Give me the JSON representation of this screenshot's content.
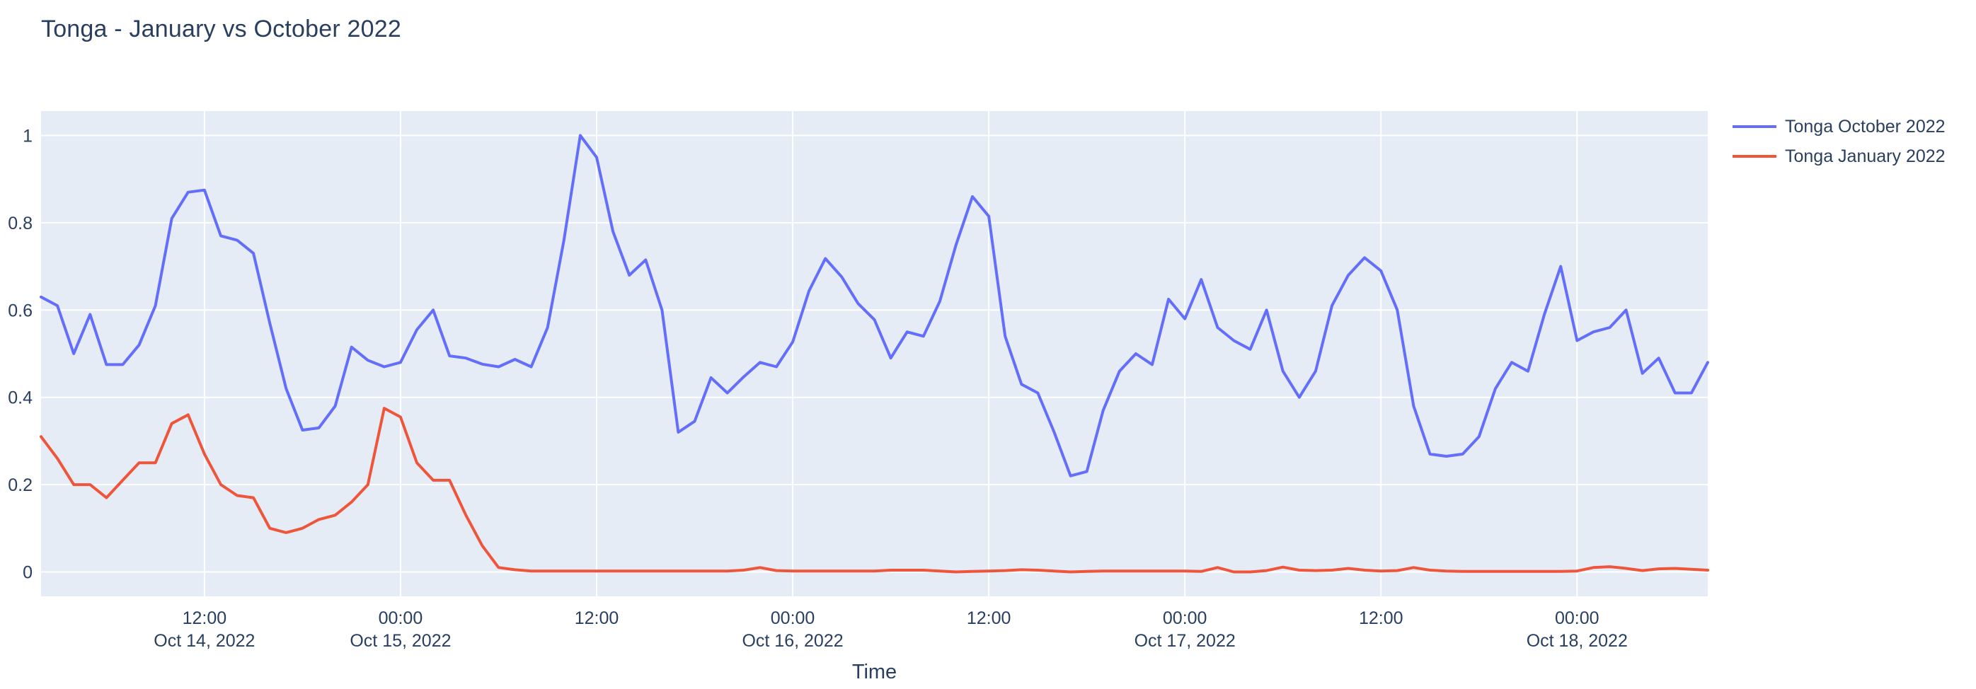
{
  "page": {
    "title": "Tonga - January vs October 2022"
  },
  "colors": {
    "plot_background": "#e5ecf6",
    "grid": "#ffffff",
    "text": "#2a3f5f",
    "october_line": "#636efa",
    "january_line": "#ef553b"
  },
  "chart_data": {
    "type": "line",
    "title": "Tonga - January vs October 2022",
    "xlabel": "Time",
    "grid": true,
    "legend_position": "top-right",
    "x_axis": {
      "unit": "hours since Oct 14, 2022 00:00",
      "start_hour": 2,
      "end_hour": 104,
      "step": 1
    },
    "ylim": [
      -0.056,
      1.056
    ],
    "y_ticks": [
      {
        "value": 0,
        "label": "0"
      },
      {
        "value": 0.2,
        "label": "0.2"
      },
      {
        "value": 0.4,
        "label": "0.4"
      },
      {
        "value": 0.6,
        "label": "0.6"
      },
      {
        "value": 0.8,
        "label": "0.8"
      },
      {
        "value": 1,
        "label": "1"
      }
    ],
    "x_ticks": [
      {
        "hour": 12,
        "time": "12:00",
        "date": "Oct 14, 2022"
      },
      {
        "hour": 24,
        "time": "00:00",
        "date": "Oct 15, 2022"
      },
      {
        "hour": 36,
        "time": "12:00",
        "date": ""
      },
      {
        "hour": 48,
        "time": "00:00",
        "date": "Oct 16, 2022"
      },
      {
        "hour": 60,
        "time": "12:00",
        "date": ""
      },
      {
        "hour": 72,
        "time": "00:00",
        "date": "Oct 17, 2022"
      },
      {
        "hour": 84,
        "time": "12:00",
        "date": ""
      },
      {
        "hour": 96,
        "time": "00:00",
        "date": "Oct 18, 2022"
      }
    ],
    "series": [
      {
        "name": "Tonga October 2022",
        "color": "#636efa",
        "values": [
          0.63,
          0.61,
          0.5,
          0.59,
          0.475,
          0.475,
          0.52,
          0.61,
          0.81,
          0.87,
          0.875,
          0.77,
          0.76,
          0.73,
          0.57,
          0.42,
          0.325,
          0.33,
          0.38,
          0.515,
          0.485,
          0.47,
          0.48,
          0.555,
          0.6,
          0.495,
          0.49,
          0.476,
          0.47,
          0.487,
          0.47,
          0.56,
          0.76,
          1.0,
          0.95,
          0.78,
          0.68,
          0.715,
          0.6,
          0.32,
          0.345,
          0.445,
          0.41,
          0.447,
          0.48,
          0.47,
          0.527,
          0.644,
          0.718,
          0.676,
          0.615,
          0.578,
          0.49,
          0.55,
          0.54,
          0.62,
          0.75,
          0.86,
          0.815,
          0.54,
          0.43,
          0.41,
          0.32,
          0.22,
          0.23,
          0.37,
          0.46,
          0.5,
          0.475,
          0.625,
          0.58,
          0.67,
          0.56,
          0.53,
          0.51,
          0.6,
          0.46,
          0.4,
          0.46,
          0.61,
          0.68,
          0.72,
          0.69,
          0.6,
          0.38,
          0.27,
          0.265,
          0.27,
          0.31,
          0.42,
          0.48,
          0.46,
          0.59,
          0.7,
          0.53,
          0.55,
          0.56,
          0.6,
          0.455,
          0.49,
          0.41,
          0.41,
          0.48
        ]
      },
      {
        "name": "Tonga January 2022",
        "color": "#ef553b",
        "values": [
          0.31,
          0.26,
          0.2,
          0.2,
          0.17,
          0.21,
          0.25,
          0.25,
          0.34,
          0.36,
          0.27,
          0.2,
          0.175,
          0.17,
          0.1,
          0.09,
          0.1,
          0.12,
          0.13,
          0.16,
          0.2,
          0.375,
          0.355,
          0.25,
          0.21,
          0.21,
          0.13,
          0.06,
          0.01,
          0.005,
          0.002,
          0.002,
          0.002,
          0.002,
          0.002,
          0.002,
          0.002,
          0.002,
          0.002,
          0.002,
          0.002,
          0.002,
          0.002,
          0.004,
          0.01,
          0.003,
          0.002,
          0.002,
          0.002,
          0.002,
          0.002,
          0.002,
          0.004,
          0.004,
          0.004,
          0.002,
          0.0,
          0.001,
          0.002,
          0.003,
          0.005,
          0.004,
          0.002,
          0.0,
          0.001,
          0.002,
          0.002,
          0.002,
          0.002,
          0.002,
          0.002,
          0.001,
          0.01,
          0.0,
          0.0,
          0.003,
          0.011,
          0.004,
          0.003,
          0.004,
          0.008,
          0.004,
          0.002,
          0.003,
          0.01,
          0.004,
          0.002,
          0.001,
          0.001,
          0.001,
          0.001,
          0.001,
          0.001,
          0.001,
          0.002,
          0.01,
          0.012,
          0.008,
          0.003,
          0.007,
          0.008,
          0.006,
          0.004
        ]
      }
    ]
  }
}
